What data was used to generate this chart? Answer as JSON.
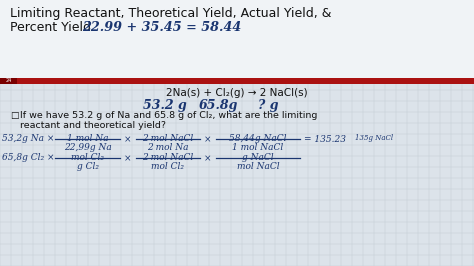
{
  "bg_color": "#dce3ea",
  "title_bg": "#f0f3f6",
  "grid_color": "#c5cdd5",
  "red_bar_color": "#aa1111",
  "dark_red": "#7a0000",
  "slide_num": "24",
  "hw_color": "#1a3570",
  "black": "#111111",
  "title1": "Limiting Reactant, Theoretical Yield, Actual Yield, &",
  "title2_plain": "Percent Yield  ",
  "title2_math": "22.99 + 35.45 = 58.44",
  "eq_text": "2Na(s) + Cl₂(g) → 2 NaCl(s)",
  "masses": [
    "53.2 g",
    "65.8g",
    "? g"
  ],
  "bullet": "If we have 53.2 g of Na and 65.8 g of Cl₂, what are the limiting",
  "bullet2": "reactant and theoretical yield?"
}
